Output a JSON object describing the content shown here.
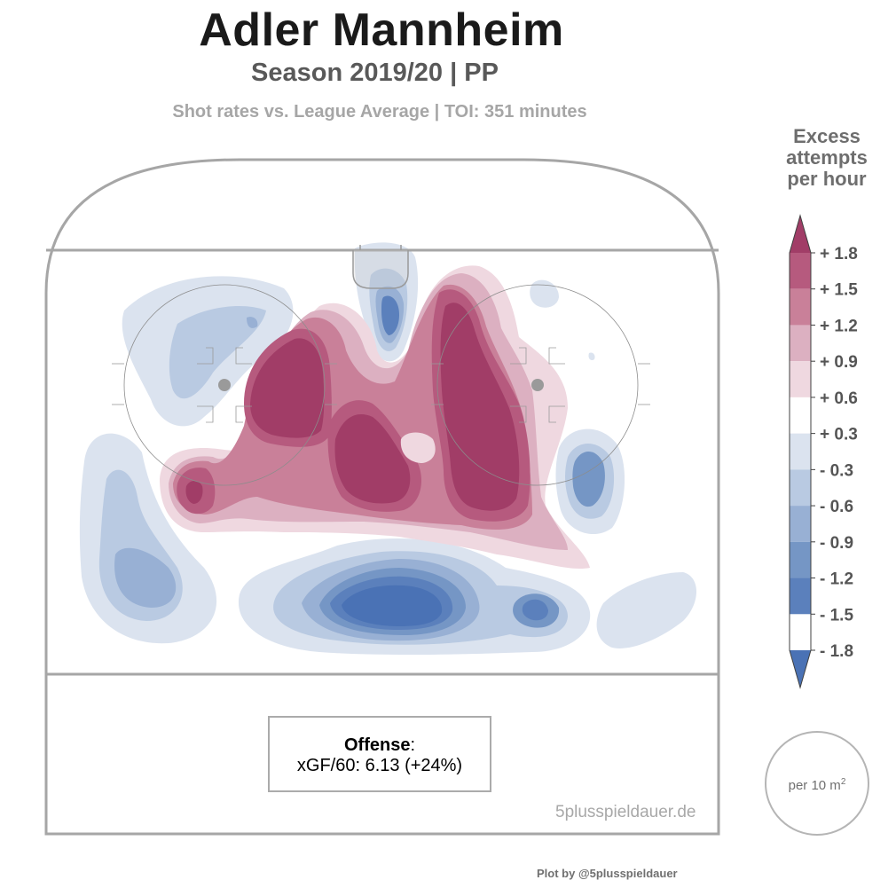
{
  "header": {
    "title": "Adler Mannheim",
    "subtitle": "Season 2019/20 | PP",
    "caption": "Shot rates vs. League Average | TOI: 351 minutes"
  },
  "legend": {
    "title_lines": [
      "Excess",
      "attempts",
      "per hour"
    ],
    "levels": [
      {
        "label": "+ 1.8",
        "color": "#a13d67"
      },
      {
        "label": "+ 1.5",
        "color": "#b65a7e"
      },
      {
        "label": "+ 1.2",
        "color": "#c98099"
      },
      {
        "label": "+ 0.9",
        "color": "#dcb0c1"
      },
      {
        "label": "+ 0.6",
        "color": "#efd8e0"
      },
      {
        "label": "+ 0.3",
        "color": "#ffffff"
      },
      {
        "label": "- 0.3",
        "color": "#dbe3ef"
      },
      {
        "label": "- 0.6",
        "color": "#b9cae2"
      },
      {
        "label": "- 0.9",
        "color": "#98b0d4"
      },
      {
        "label": "- 1.2",
        "color": "#7596c5"
      },
      {
        "label": "- 1.5",
        "color": "#5b80bc"
      },
      {
        "label": "- 1.8",
        "color": "#4a72b5"
      }
    ],
    "unit_note": "per 10 m",
    "unit_sup": "2"
  },
  "stats_box": {
    "heading": "Offense",
    "heading_suffix": ":",
    "value": "xGF/60: 6.13 (+24%)"
  },
  "watermark": "5plusspieldauer.de",
  "credit": "Plot by @5plusspieldauer",
  "chart_data": {
    "type": "heatmap",
    "title": "Adler Mannheim",
    "subtitle": "Season 2019/20 | PP",
    "value_label": "Excess attempts per hour",
    "levels": [
      1.8,
      1.5,
      1.2,
      0.9,
      0.6,
      0.3,
      -0.3,
      -0.6,
      -0.9,
      -1.2,
      -1.5,
      -1.8
    ],
    "regions": [
      {
        "area": "left faceoff circle",
        "value": 1.8
      },
      {
        "area": "right slot / right faceoff circle",
        "value": 1.8
      },
      {
        "area": "low slot",
        "value": 1.8
      },
      {
        "area": "left low side",
        "value": 1.5
      },
      {
        "area": "slot gap",
        "value": 0.6
      },
      {
        "area": "crease",
        "value": -1.2
      },
      {
        "area": "right circle edge",
        "value": -1.2
      },
      {
        "area": "left wing boards",
        "value": -1.2
      },
      {
        "area": "high slot / point",
        "value": -1.8
      },
      {
        "area": "right point",
        "value": -1.2
      },
      {
        "area": "left point",
        "value": -0.3
      },
      {
        "area": "right boards",
        "value": -0.3
      }
    ],
    "annotation": "xGF/60: 6.13 (+24%)"
  }
}
